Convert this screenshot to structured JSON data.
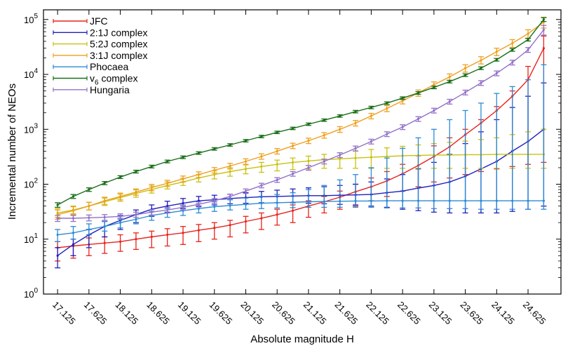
{
  "chart_data": {
    "type": "line",
    "title": "",
    "xlabel": "Absolute magnitude H",
    "ylabel": "Incremental number of NEOs",
    "yscale": "log",
    "ylim": [
      1,
      150000
    ],
    "xlim": [
      16.9,
      25.15
    ],
    "grid": false,
    "legend_position": "top-left",
    "x_ticks": [
      "17.125",
      "17.625",
      "18.125",
      "18.625",
      "19.125",
      "19.625",
      "20.125",
      "20.625",
      "21.125",
      "21.625",
      "22.125",
      "22.625",
      "23.125",
      "23.625",
      "24.125",
      "24.625"
    ],
    "y_ticks": [
      {
        "value": 1,
        "base": "10",
        "exp": "0"
      },
      {
        "value": 10,
        "base": "10",
        "exp": "1"
      },
      {
        "value": 100,
        "base": "10",
        "exp": "2"
      },
      {
        "value": 1000,
        "base": "10",
        "exp": "3"
      },
      {
        "value": 10000,
        "base": "10",
        "exp": "4"
      },
      {
        "value": 100000,
        "base": "10",
        "exp": "5"
      }
    ],
    "x": [
      17.125,
      17.375,
      17.625,
      17.875,
      18.125,
      18.375,
      18.625,
      18.875,
      19.125,
      19.375,
      19.625,
      19.875,
      20.125,
      20.375,
      20.625,
      20.875,
      21.125,
      21.375,
      21.625,
      21.875,
      22.125,
      22.375,
      22.625,
      22.875,
      23.125,
      23.375,
      23.625,
      23.875,
      24.125,
      24.375,
      24.625,
      24.875
    ],
    "series": [
      {
        "name": "JFC",
        "name_sub": "",
        "color": "#e8231c",
        "values": [
          7,
          7.5,
          8,
          8.5,
          9,
          10,
          11,
          12,
          13,
          14.5,
          16,
          18,
          21,
          24,
          28,
          33,
          40,
          48,
          58,
          73,
          90,
          115,
          155,
          220,
          320,
          480,
          800,
          1300,
          2200,
          4000,
          8000,
          30000
        ],
        "err_lo": [
          4,
          4.5,
          5,
          5.5,
          6,
          6.5,
          7,
          7.5,
          8,
          9,
          10,
          11,
          13,
          15,
          18,
          20,
          25,
          30,
          35,
          40,
          50,
          60,
          75,
          90,
          110,
          130,
          150,
          170,
          190,
          210,
          230,
          250
        ],
        "err_hi": [
          9,
          10,
          10.5,
          11,
          12,
          13,
          14,
          15.5,
          17,
          18.5,
          20,
          22,
          26,
          30,
          35,
          42,
          50,
          60,
          75,
          100,
          130,
          170,
          230,
          330,
          500,
          700,
          1000,
          1500,
          2600,
          5000,
          14000,
          50000
        ]
      },
      {
        "name": "2:1J complex",
        "name_sub": "",
        "color": "#1f1fbf",
        "values": [
          5,
          8,
          12,
          17,
          22,
          28,
          35,
          40,
          45,
          50,
          52,
          55,
          57,
          59,
          60,
          61,
          62,
          62,
          63,
          64,
          65,
          70,
          75,
          85,
          95,
          110,
          140,
          190,
          260,
          400,
          600,
          1000
        ],
        "err_lo": [
          3,
          5,
          7,
          11,
          15,
          20,
          26,
          31,
          36,
          40,
          42,
          44,
          45,
          46,
          46,
          46,
          45,
          44,
          43,
          42,
          40,
          38,
          35,
          33,
          31,
          30,
          30,
          30,
          30,
          32,
          35,
          40
        ],
        "err_hi": [
          7,
          10,
          15,
          21,
          27,
          34,
          42,
          49,
          55,
          60,
          63,
          66,
          70,
          74,
          78,
          82,
          86,
          90,
          95,
          100,
          110,
          125,
          150,
          190,
          250,
          350,
          550,
          900,
          1500,
          2500,
          4000,
          7000
        ]
      },
      {
        "name": "5:2J complex",
        "name_sub": "",
        "color": "#c9c10f",
        "values": [
          30,
          34,
          40,
          48,
          57,
          68,
          80,
          95,
          110,
          130,
          150,
          170,
          190,
          210,
          230,
          250,
          265,
          280,
          290,
          300,
          310,
          320,
          330,
          335,
          340,
          340,
          345,
          345,
          350,
          350,
          350,
          350
        ],
        "err_lo": [
          25,
          29,
          34,
          41,
          49,
          58,
          69,
          82,
          95,
          110,
          125,
          140,
          155,
          165,
          175,
          185,
          190,
          195,
          195,
          195,
          195,
          195,
          195,
          195,
          195,
          195,
          195,
          195,
          195,
          195,
          195,
          195
        ],
        "err_hi": [
          36,
          40,
          47,
          56,
          66,
          79,
          93,
          110,
          128,
          150,
          175,
          200,
          225,
          250,
          275,
          300,
          325,
          350,
          375,
          400,
          430,
          460,
          490,
          520,
          550,
          580,
          610,
          650,
          700,
          800,
          900,
          1000
        ]
      },
      {
        "name": "3:1J complex",
        "name_sub": "",
        "color": "#ef9f1e",
        "values": [
          28,
          33,
          40,
          50,
          60,
          72,
          87,
          104,
          125,
          150,
          180,
          215,
          260,
          320,
          400,
          500,
          620,
          780,
          1000,
          1300,
          1750,
          2400,
          3300,
          4600,
          6500,
          9000,
          13000,
          18000,
          26000,
          37000,
          55000,
          90000
        ],
        "err_lo": [
          23,
          28,
          34,
          43,
          52,
          63,
          76,
          91,
          110,
          133,
          160,
          190,
          230,
          285,
          355,
          445,
          550,
          690,
          880,
          1150,
          1550,
          2100,
          2900,
          4000,
          5600,
          7800,
          11000,
          15500,
          22000,
          31000,
          45000,
          70000
        ],
        "err_hi": [
          34,
          39,
          47,
          58,
          69,
          82,
          99,
          118,
          141,
          168,
          201,
          240,
          290,
          358,
          447,
          558,
          690,
          870,
          1120,
          1450,
          1950,
          2700,
          3700,
          5200,
          7300,
          10200,
          15000,
          21000,
          30000,
          43000,
          65000,
          110000
        ]
      },
      {
        "name": "Phocaea",
        "name_sub": "",
        "color": "#2b8bd6",
        "values": [
          12,
          13,
          15,
          17,
          20,
          23,
          27,
          30,
          33,
          36,
          39,
          41,
          43,
          45,
          46,
          47,
          48,
          48.5,
          49,
          49.5,
          49.5,
          50,
          50,
          50,
          50,
          50,
          50,
          50,
          50,
          50,
          50,
          50
        ],
        "err_lo": [
          9,
          10,
          12,
          14,
          16,
          19,
          22,
          25,
          27,
          30,
          32,
          34,
          35,
          36,
          37,
          37.5,
          38,
          38,
          38,
          38,
          38,
          37,
          37,
          37,
          36,
          36,
          36,
          35,
          35,
          35,
          35,
          35
        ],
        "err_hi": [
          15,
          17,
          19,
          21,
          24,
          28,
          32,
          36,
          40,
          44,
          48,
          52,
          56,
          60,
          65,
          70,
          80,
          95,
          120,
          150,
          200,
          300,
          450,
          700,
          1000,
          1500,
          2200,
          3000,
          4500,
          6000,
          8000,
          15000
        ]
      },
      {
        "name": "v",
        "name_sub": "6",
        "name_suffix": " complex",
        "color": "#1a6f1a",
        "values": [
          42,
          60,
          80,
          105,
          135,
          170,
          210,
          260,
          310,
          370,
          440,
          520,
          620,
          740,
          880,
          1040,
          1240,
          1470,
          1750,
          2100,
          2500,
          3000,
          3700,
          4600,
          5800,
          7400,
          9700,
          13000,
          18500,
          28000,
          43000,
          100000
        ],
        "err_lo": [
          38,
          55,
          74,
          98,
          127,
          160,
          198,
          245,
          293,
          350,
          417,
          493,
          588,
          702,
          835,
          987,
          1177,
          1396,
          1660,
          1990,
          2370,
          2840,
          3500,
          4350,
          5480,
          6990,
          9160,
          12270,
          17470,
          26400,
          40500,
          92000
        ],
        "err_hi": [
          46,
          65,
          86,
          112,
          143,
          180,
          222,
          275,
          327,
          390,
          463,
          547,
          652,
          778,
          925,
          1093,
          1303,
          1544,
          1840,
          2210,
          2630,
          3160,
          3900,
          4850,
          6120,
          7810,
          10240,
          13730,
          19550,
          29600,
          45500,
          108000
        ]
      },
      {
        "name": "Hungaria",
        "name_sub": "",
        "color": "#9370c8",
        "values": [
          24,
          24,
          24.5,
          25,
          26,
          28,
          31,
          34,
          38,
          43,
          50,
          60,
          75,
          95,
          120,
          155,
          200,
          260,
          340,
          450,
          600,
          820,
          1100,
          1550,
          2200,
          3200,
          4700,
          7000,
          10500,
          16500,
          28000,
          65000
        ],
        "err_lo": [
          21,
          21,
          21.5,
          22,
          23,
          25,
          27.5,
          30,
          34,
          38.5,
          45,
          54,
          68,
          86,
          108,
          140,
          180,
          234,
          306,
          405,
          540,
          738,
          990,
          1395,
          1980,
          2880,
          4230,
          6300,
          9450,
          14850,
          25200,
          52000
        ],
        "err_hi": [
          27,
          27,
          27.5,
          28,
          29,
          31,
          34.5,
          38,
          42,
          47.5,
          55,
          66,
          82,
          104,
          132,
          170,
          220,
          286,
          374,
          495,
          660,
          902,
          1210,
          1705,
          2420,
          3520,
          5170,
          7700,
          11550,
          18150,
          30800,
          78000
        ]
      }
    ]
  }
}
